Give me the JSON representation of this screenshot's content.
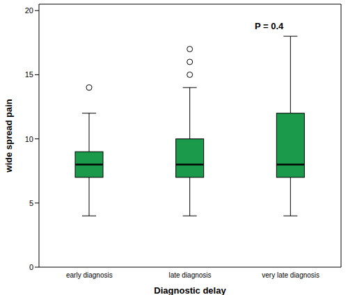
{
  "chart_data": {
    "type": "box",
    "categories": [
      "early diagnosis",
      "late diagnosis",
      "very late diagnosis"
    ],
    "min": [
      4,
      4,
      4
    ],
    "q1": [
      7,
      7,
      7
    ],
    "median": [
      8,
      8,
      8
    ],
    "q3": [
      9,
      10,
      12
    ],
    "max": [
      12,
      14,
      18
    ],
    "outliers": [
      [
        14
      ],
      [
        15,
        16,
        17
      ],
      []
    ],
    "color": "#1b9a4b",
    "x_label": "Diagnostic delay",
    "y_label": "wide spread pain",
    "annotation": "P = 0.4",
    "ylim": [
      0,
      20.5
    ],
    "yticks": [
      0,
      5,
      10,
      15,
      20
    ],
    "grid": false
  }
}
